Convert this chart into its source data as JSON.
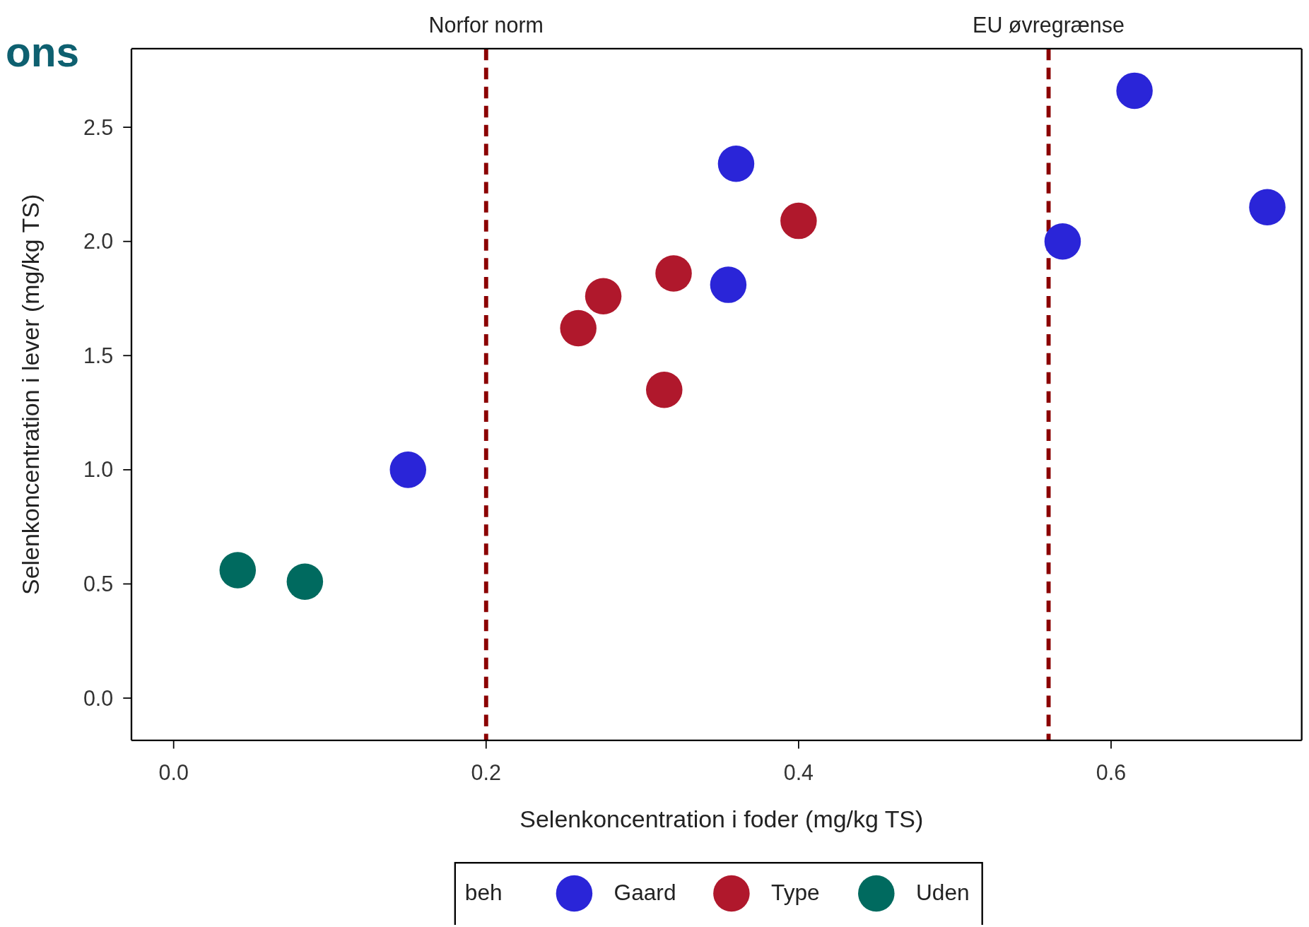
{
  "chart_data": {
    "type": "scatter",
    "title": "ons",
    "xlabel": "Selenkoncentration i foder (mg/kg TS)",
    "ylabel": "Selenkoncentration i lever (mg/kg TS)",
    "legend_title": "beh",
    "legend": "bottom",
    "marker": "circle",
    "grid": false,
    "xlim": [
      -0.027,
      0.722
    ],
    "ylim": [
      -0.185,
      2.844
    ],
    "xticks": [
      {
        "value": 0,
        "label": "0.0"
      },
      {
        "value": 0.2,
        "label": "0.2"
      },
      {
        "value": 0.4,
        "label": "0.4"
      },
      {
        "value": 0.6,
        "label": "0.6"
      }
    ],
    "yticks": [
      {
        "value": 0,
        "label": "0.0"
      },
      {
        "value": 0.5,
        "label": "0.5"
      },
      {
        "value": 1,
        "label": "1.0"
      },
      {
        "value": 1.5,
        "label": "1.5"
      },
      {
        "value": 2,
        "label": "2.0"
      },
      {
        "value": 2.5,
        "label": "2.5"
      }
    ],
    "series": [
      {
        "name": "Gaard",
        "color": "#2a25d8",
        "x": [
          0.15,
          0.36,
          0.355,
          0.569,
          0.615,
          0.7
        ],
        "values": [
          1.0,
          2.34,
          1.81,
          2.0,
          2.66,
          2.15
        ]
      },
      {
        "name": "Type",
        "color": "#b0182c",
        "x": [
          0.259,
          0.275,
          0.32,
          0.314,
          0.4
        ],
        "values": [
          1.62,
          1.76,
          1.86,
          1.35,
          2.09
        ]
      },
      {
        "name": "Uden",
        "color": "#006a5f",
        "x": [
          0.041,
          0.084
        ],
        "values": [
          0.56,
          0.51
        ]
      }
    ],
    "ref_lines": [
      {
        "axis": "x",
        "value": 0.2,
        "label": "Norfor norm",
        "color": "#8b0000",
        "line_style": "dashed"
      },
      {
        "axis": "x",
        "value": 0.56,
        "label": "EU øvregrænse",
        "color": "#8b0000",
        "line_style": "dashed"
      }
    ]
  }
}
